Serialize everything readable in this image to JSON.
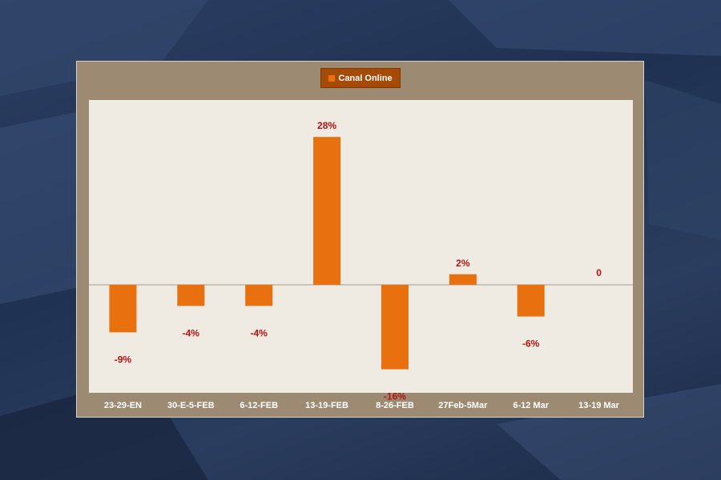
{
  "colors": {
    "background": "#23365a",
    "frame": "#9c8a72",
    "plot_area": "#efebe2",
    "bar": "#e8700f",
    "legend_bg": "#a64b06",
    "data_label": "#b31212",
    "tick_label": "#ffffff"
  },
  "chart_data": {
    "type": "bar",
    "categories": [
      "23-29-EN",
      "30-E-5-FEB",
      "6-12-FEB",
      "13-19-FEB",
      "8-26-FEB",
      "27Feb-5Mar",
      "6-12 Mar",
      "13-19 Mar"
    ],
    "series": [
      {
        "name": "Canal Online",
        "values": [
          -9,
          -4,
          -4,
          28,
          -16,
          2,
          -6,
          0
        ]
      }
    ],
    "data_labels": [
      "-9%",
      "-4%",
      "-4%",
      "28%",
      "-16%",
      "2%",
      "-6%",
      "0"
    ],
    "value_unit": "%",
    "ylim": [
      -21,
      35
    ],
    "grid": false,
    "y_axis_visible": false,
    "legend_position": "top-center",
    "title": "",
    "xlabel": "",
    "ylabel": ""
  }
}
